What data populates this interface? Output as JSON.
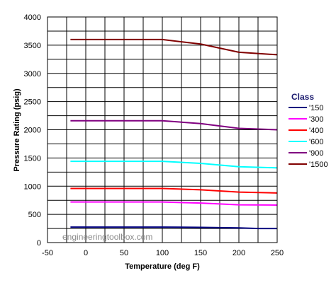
{
  "chart_data": {
    "type": "line",
    "xlabel": "Temperature (deg F)",
    "ylabel": "Pressure Rating (psig)",
    "xlim": [
      -50,
      250
    ],
    "ylim": [
      0,
      4000
    ],
    "xticks": [
      -50,
      0,
      50,
      100,
      150,
      200,
      250
    ],
    "yticks": [
      0,
      500,
      1000,
      1500,
      2000,
      2500,
      3000,
      3500,
      4000
    ],
    "xtick_labels": [
      "-50",
      "0",
      "50",
      "100",
      "150",
      "200",
      "250"
    ],
    "ytick_labels": [
      "0",
      "500",
      "1000",
      "1500",
      "2000",
      "2500",
      "3000",
      "3500",
      "4000"
    ],
    "x_grid_values": [
      -50,
      -25,
      0,
      25,
      50,
      75,
      100,
      125,
      150,
      175,
      200,
      225,
      250
    ],
    "y_grid_values": [
      0,
      250,
      500,
      750,
      1000,
      1250,
      1500,
      1750,
      2000,
      2250,
      2500,
      2750,
      3000,
      3250,
      3500,
      3750,
      4000
    ],
    "grid": true,
    "legend_title": "Class",
    "legend_position": "right",
    "watermark": "engineeringtoolbox.com",
    "series": [
      {
        "name": "'150",
        "color": "#000080",
        "x": [
          -20,
          100,
          150,
          200,
          225,
          250
        ],
        "y": [
          275,
          275,
          270,
          260,
          250,
          250
        ]
      },
      {
        "name": "'300",
        "color": "#ff00ff",
        "x": [
          -20,
          100,
          150,
          200,
          250
        ],
        "y": [
          720,
          720,
          700,
          670,
          665
        ]
      },
      {
        "name": "'400",
        "color": "#ff0000",
        "x": [
          -20,
          100,
          150,
          200,
          250
        ],
        "y": [
          960,
          960,
          935,
          895,
          880
        ]
      },
      {
        "name": "'600",
        "color": "#00ffff",
        "x": [
          -20,
          100,
          150,
          200,
          250
        ],
        "y": [
          1440,
          1440,
          1405,
          1345,
          1325
        ]
      },
      {
        "name": "'900",
        "color": "#800080",
        "x": [
          -20,
          100,
          150,
          200,
          250
        ],
        "y": [
          2160,
          2160,
          2110,
          2025,
          2000
        ]
      },
      {
        "name": "'1500",
        "color": "#800000",
        "x": [
          -20,
          100,
          150,
          200,
          250
        ],
        "y": [
          3600,
          3600,
          3520,
          3375,
          3330
        ]
      }
    ]
  }
}
